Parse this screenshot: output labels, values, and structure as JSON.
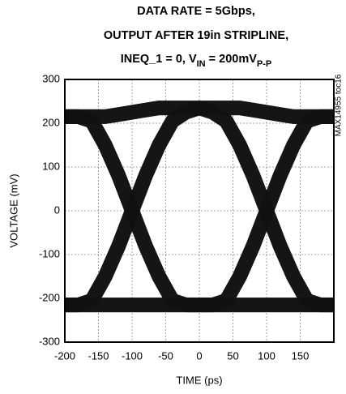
{
  "chart_data": {
    "type": "eye",
    "title": [
      "DATA RATE = 5Gbps,",
      "OUTPUT AFTER 19in STRIPLINE,"
    ],
    "title_line3": [
      {
        "text": "INEQ_1 = 0, V"
      },
      {
        "text": "IN",
        "sub": true
      },
      {
        "text": " = 200mV"
      },
      {
        "text": "P-P",
        "sub": true
      }
    ],
    "annotation": "MAX14955 toc16",
    "x_label": "TIME (ps)",
    "y_label": "VOLTAGE (mV)",
    "xlim": [
      -200,
      200
    ],
    "xticks": [
      -200,
      -150,
      -100,
      -50,
      0,
      50,
      100,
      150
    ],
    "ylim": [
      -300,
      300
    ],
    "yticks": [
      -300,
      -200,
      -100,
      0,
      100,
      200,
      300
    ],
    "grid": true,
    "x": [
      -200,
      -180,
      -160,
      -140,
      -120,
      -100,
      -80,
      -60,
      -40,
      -20,
      0,
      20,
      40,
      60,
      80,
      100,
      120,
      140,
      160,
      180,
      200
    ],
    "series": [
      {
        "color": "#111111",
        "values": [
          -215,
          -215,
          -215,
          -215,
          -215,
          -215,
          -215,
          -215,
          -215,
          -215,
          -215,
          -215,
          -215,
          -215,
          -215,
          -215,
          -215,
          -215,
          -215,
          -215,
          -215
        ]
      },
      {
        "color": "#111111",
        "values": [
          -215,
          -215,
          -215,
          -215,
          -215,
          -215,
          -215,
          -215,
          -215,
          -215,
          -215,
          -215,
          -205,
          -150,
          -80,
          0,
          80,
          150,
          205,
          215,
          215
        ]
      },
      {
        "color": "#111111",
        "values": [
          -215,
          -215,
          -205,
          -150,
          -80,
          0,
          80,
          150,
          205,
          225,
          235,
          225,
          205,
          150,
          80,
          0,
          -80,
          -150,
          -205,
          -215,
          -215
        ]
      },
      {
        "color": "#111111",
        "values": [
          -215,
          -215,
          -205,
          -150,
          -80,
          0,
          80,
          150,
          205,
          225,
          235,
          235,
          235,
          235,
          230,
          225,
          220,
          215,
          215,
          215,
          215
        ]
      },
      {
        "color": "#111111",
        "values": [
          215,
          215,
          205,
          150,
          80,
          0,
          -80,
          -150,
          -205,
          -215,
          -215,
          -215,
          -215,
          -215,
          -215,
          -215,
          -215,
          -215,
          -215,
          -215,
          -215
        ]
      },
      {
        "color": "#111111",
        "values": [
          215,
          215,
          205,
          150,
          80,
          0,
          -80,
          -150,
          -205,
          -215,
          -215,
          -215,
          -205,
          -150,
          -80,
          0,
          80,
          150,
          205,
          215,
          215
        ]
      },
      {
        "color": "#111111",
        "values": [
          215,
          215,
          215,
          215,
          220,
          225,
          230,
          235,
          235,
          235,
          235,
          225,
          205,
          150,
          80,
          0,
          -80,
          -150,
          -205,
          -215,
          -215
        ]
      },
      {
        "color": "#111111",
        "values": [
          215,
          215,
          215,
          215,
          220,
          225,
          230,
          235,
          235,
          235,
          235,
          235,
          235,
          235,
          230,
          225,
          220,
          215,
          215,
          215,
          215
        ]
      }
    ]
  }
}
